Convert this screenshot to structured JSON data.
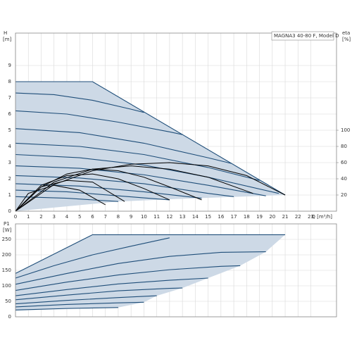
{
  "chart_data": [
    {
      "type": "line",
      "title": "MAGNA3 40-80 F, Model D",
      "y_label": "H",
      "y_unit": "[m]",
      "y2_label": "eta",
      "y2_unit": "[%]",
      "x_label": "Q [m³/h]",
      "xlim": [
        0,
        25
      ],
      "ylim": [
        0,
        11
      ],
      "y2lim": [
        0,
        220
      ],
      "xticks": [
        0,
        1,
        2,
        3,
        4,
        5,
        6,
        7,
        8,
        9,
        10,
        11,
        12,
        13,
        14,
        15,
        16,
        17,
        18,
        19,
        20,
        21,
        22,
        23
      ],
      "yticks": [
        0,
        1,
        2,
        3,
        4,
        5,
        6,
        7,
        8,
        9
      ],
      "y2ticks": [
        20,
        40,
        60,
        80,
        100
      ],
      "grid": true,
      "region": {
        "color": "#cdd9e6",
        "x": [
          0,
          6,
          21,
          14,
          8,
          0
        ],
        "values": [
          8,
          8,
          1,
          0.8,
          0.6,
          0
        ]
      },
      "series": [
        {
          "color": "#1f4e79",
          "x": [
            0,
            6,
            21
          ],
          "values": [
            8,
            8,
            1
          ]
        },
        {
          "color": "#1f4e79",
          "x": [
            0,
            3,
            6,
            9,
            10
          ],
          "values": [
            7.3,
            7.2,
            6.85,
            6.3,
            6.1
          ]
        },
        {
          "color": "#1f4e79",
          "x": [
            0,
            4,
            8,
            12,
            13
          ],
          "values": [
            6.2,
            6.0,
            5.5,
            4.9,
            4.73
          ]
        },
        {
          "color": "#1f4e79",
          "x": [
            0,
            5,
            10,
            15,
            16.8
          ],
          "values": [
            5.1,
            4.85,
            4.2,
            3.3,
            2.95
          ]
        },
        {
          "color": "#1f4e79",
          "x": [
            0,
            5,
            10,
            15,
            19
          ],
          "values": [
            4.2,
            4.0,
            3.5,
            2.7,
            1.9
          ]
        },
        {
          "color": "#1f4e79",
          "x": [
            0,
            5,
            10,
            15,
            20.5
          ],
          "values": [
            3.5,
            3.3,
            2.85,
            2.1,
            1.1
          ]
        },
        {
          "color": "#1f4e79",
          "x": [
            0,
            5,
            10,
            15,
            19.5
          ],
          "values": [
            2.8,
            2.65,
            2.25,
            1.6,
            0.95
          ]
        },
        {
          "color": "#1f4e79",
          "x": [
            0,
            5,
            10,
            15,
            17
          ],
          "values": [
            2.2,
            2.05,
            1.7,
            1.1,
            0.9
          ]
        },
        {
          "color": "#1f4e79",
          "x": [
            0,
            5,
            10,
            14.5
          ],
          "values": [
            1.7,
            1.55,
            1.2,
            0.8
          ]
        },
        {
          "color": "#1f4e79",
          "x": [
            0,
            4,
            8,
            12
          ],
          "values": [
            1.3,
            1.2,
            0.95,
            0.7
          ]
        },
        {
          "color": "#1f4e79",
          "x": [
            0,
            4,
            8
          ],
          "values": [
            0.9,
            0.8,
            0.6
          ]
        },
        {
          "color": "#000000",
          "axis": "y2",
          "x": [
            0,
            3,
            6,
            9,
            12,
            15,
            18,
            21
          ],
          "values": [
            0,
            33,
            50,
            58,
            60,
            56,
            44,
            20
          ]
        },
        {
          "color": "#000000",
          "axis": "y2",
          "x": [
            0,
            3,
            6,
            9,
            12,
            15,
            18.5
          ],
          "values": [
            0,
            36,
            52,
            56,
            52,
            42,
            22
          ]
        },
        {
          "color": "#000000",
          "axis": "y2",
          "x": [
            0,
            2,
            4,
            6,
            8,
            10,
            12,
            14.5
          ],
          "values": [
            0,
            30,
            46,
            52,
            50,
            42,
            30,
            14
          ]
        },
        {
          "color": "#000000",
          "axis": "y2",
          "x": [
            0,
            2,
            4,
            6,
            8,
            10,
            12
          ],
          "values": [
            0,
            32,
            44,
            46,
            40,
            28,
            14
          ]
        },
        {
          "color": "#000000",
          "axis": "y2",
          "x": [
            0,
            2,
            4,
            6,
            8.5
          ],
          "values": [
            0,
            30,
            38,
            36,
            12
          ]
        },
        {
          "color": "#000000",
          "axis": "y2",
          "x": [
            0,
            1,
            3,
            5,
            7
          ],
          "values": [
            0,
            22,
            32,
            26,
            8
          ]
        }
      ]
    },
    {
      "type": "line",
      "y_label": "P1",
      "y_unit": "[W]",
      "xlim": [
        0,
        25
      ],
      "ylim": [
        0,
        300
      ],
      "xticks": [
        0,
        1,
        2,
        3,
        4,
        5,
        6,
        7,
        8,
        9,
        10,
        11,
        12,
        13,
        14,
        15,
        16,
        17,
        18,
        19,
        20,
        21,
        22,
        23
      ],
      "yticks": [
        0,
        50,
        100,
        150,
        200,
        250
      ],
      "grid": true,
      "region": {
        "color": "#cdd9e6",
        "x": [
          0,
          6,
          21,
          19.5,
          17.5,
          15,
          13,
          11,
          10,
          8,
          0
        ],
        "values": [
          140,
          265,
          265,
          210,
          165,
          125,
          93,
          68,
          47,
          30,
          20
        ]
      },
      "series": [
        {
          "color": "#1f4e79",
          "x": [
            0,
            6,
            21
          ],
          "values": [
            140,
            265,
            265
          ]
        },
        {
          "color": "#1f4e79",
          "x": [
            0,
            3,
            6,
            9,
            12
          ],
          "values": [
            125,
            165,
            200,
            228,
            255
          ]
        },
        {
          "color": "#1f4e79",
          "x": [
            0,
            4,
            8,
            12,
            16,
            19.5
          ],
          "values": [
            105,
            140,
            172,
            195,
            208,
            210
          ]
        },
        {
          "color": "#1f4e79",
          "x": [
            0,
            4,
            8,
            12,
            16,
            17.5
          ],
          "values": [
            85,
            112,
            135,
            152,
            163,
            165
          ]
        },
        {
          "color": "#1f4e79",
          "x": [
            0,
            4,
            8,
            12,
            15
          ],
          "values": [
            68,
            88,
            106,
            118,
            125
          ]
        },
        {
          "color": "#1f4e79",
          "x": [
            0,
            4,
            8,
            12,
            13
          ],
          "values": [
            55,
            70,
            84,
            92,
            93
          ]
        },
        {
          "color": "#1f4e79",
          "x": [
            0,
            4,
            8,
            11
          ],
          "values": [
            42,
            53,
            62,
            68
          ]
        },
        {
          "color": "#1f4e79",
          "x": [
            0,
            4,
            8,
            10
          ],
          "values": [
            32,
            40,
            45,
            47
          ]
        },
        {
          "color": "#1f4e79",
          "x": [
            0,
            4,
            8
          ],
          "values": [
            22,
            27,
            30
          ]
        }
      ]
    }
  ]
}
